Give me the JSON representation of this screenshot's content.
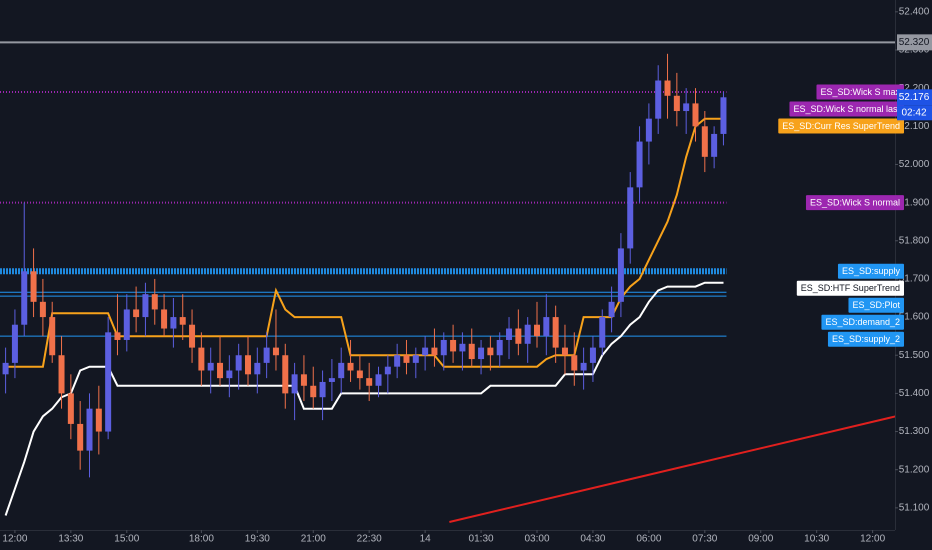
{
  "chart_data": {
    "type": "candlestick",
    "up_color": "#5c5fe0",
    "down_color": "#f0714a",
    "x": [
      0,
      1,
      2,
      3,
      4,
      5,
      6,
      7,
      8,
      9,
      10,
      11,
      12,
      13,
      14,
      15,
      16,
      17,
      18,
      19,
      20,
      21,
      22,
      23,
      24,
      25,
      26,
      27,
      28,
      29,
      30,
      31,
      32,
      33,
      34,
      35,
      36,
      37,
      38,
      39,
      40,
      41,
      42,
      43,
      44,
      45,
      46,
      47,
      48,
      49,
      50,
      51,
      52,
      53,
      54,
      55,
      56,
      57,
      58,
      59,
      60,
      61,
      62,
      63,
      64,
      65,
      66,
      67,
      68,
      69,
      70,
      71,
      72,
      73,
      74,
      75,
      76,
      77
    ],
    "open": [
      51.45,
      51.48,
      51.58,
      51.72,
      51.64,
      51.6,
      51.5,
      51.4,
      51.32,
      51.25,
      51.36,
      51.3,
      51.56,
      51.54,
      51.62,
      51.6,
      51.66,
      51.62,
      51.57,
      51.6,
      51.58,
      51.52,
      51.46,
      51.48,
      51.44,
      51.46,
      51.5,
      51.45,
      51.48,
      51.52,
      51.5,
      51.4,
      51.45,
      51.42,
      51.39,
      51.43,
      51.44,
      51.48,
      51.46,
      51.44,
      51.42,
      51.45,
      51.47,
      51.5,
      51.48,
      51.5,
      51.52,
      51.5,
      51.54,
      51.51,
      51.53,
      51.49,
      51.52,
      51.5,
      51.54,
      51.57,
      51.53,
      51.58,
      51.55,
      51.6,
      51.52,
      51.5,
      51.46,
      51.48,
      51.52,
      51.6,
      51.64,
      51.78,
      51.94,
      52.06,
      52.12,
      52.22,
      52.18,
      52.14,
      52.16,
      52.1,
      52.02,
      52.08
    ],
    "high": [
      51.52,
      51.62,
      51.9,
      51.78,
      51.7,
      51.64,
      51.55,
      51.45,
      51.38,
      51.4,
      51.42,
      51.6,
      51.66,
      51.66,
      51.68,
      51.69,
      51.7,
      51.66,
      51.65,
      51.66,
      51.62,
      51.56,
      51.52,
      51.55,
      51.5,
      51.53,
      51.55,
      51.52,
      51.56,
      51.62,
      51.53,
      51.48,
      51.5,
      51.47,
      51.46,
      51.49,
      51.52,
      51.54,
      51.5,
      51.48,
      51.47,
      51.5,
      51.53,
      51.54,
      51.52,
      51.55,
      51.57,
      51.56,
      51.58,
      51.56,
      51.57,
      51.54,
      51.55,
      51.56,
      51.6,
      51.62,
      51.6,
      51.64,
      51.66,
      51.63,
      51.58,
      51.56,
      51.52,
      51.55,
      51.62,
      51.68,
      51.82,
      51.98,
      52.1,
      52.16,
      52.26,
      52.29,
      52.24,
      52.2,
      52.2,
      52.14,
      52.1,
      52.19
    ],
    "low": [
      51.4,
      51.44,
      51.55,
      51.6,
      51.55,
      51.48,
      51.36,
      51.28,
      51.2,
      51.18,
      51.24,
      51.28,
      51.5,
      51.51,
      51.56,
      51.55,
      51.58,
      51.55,
      51.52,
      51.54,
      51.48,
      51.42,
      51.4,
      51.42,
      51.39,
      51.41,
      51.42,
      51.4,
      51.44,
      51.46,
      51.36,
      51.33,
      51.38,
      51.36,
      51.33,
      51.38,
      51.4,
      51.43,
      51.41,
      51.38,
      51.39,
      51.4,
      51.44,
      51.45,
      51.44,
      51.46,
      51.47,
      51.46,
      51.48,
      51.46,
      51.47,
      51.45,
      51.46,
      51.47,
      51.49,
      51.5,
      51.48,
      51.52,
      51.5,
      51.48,
      51.45,
      51.42,
      51.41,
      51.43,
      51.5,
      51.56,
      51.6,
      51.74,
      51.9,
      52.0,
      52.08,
      52.12,
      52.1,
      52.08,
      52.06,
      51.98,
      51.99,
      52.05
    ],
    "close": [
      51.48,
      51.58,
      51.72,
      51.64,
      51.6,
      51.5,
      51.4,
      51.32,
      51.25,
      51.36,
      51.3,
      51.56,
      51.54,
      51.62,
      51.6,
      51.66,
      51.62,
      51.57,
      51.6,
      51.58,
      51.52,
      51.46,
      51.48,
      51.44,
      51.46,
      51.5,
      51.45,
      51.48,
      51.52,
      51.5,
      51.4,
      51.45,
      51.42,
      51.39,
      51.43,
      51.44,
      51.48,
      51.46,
      51.44,
      51.42,
      51.45,
      51.47,
      51.5,
      51.48,
      51.5,
      51.52,
      51.5,
      51.54,
      51.51,
      51.53,
      51.49,
      51.52,
      51.5,
      51.54,
      51.57,
      51.53,
      51.58,
      51.55,
      51.6,
      51.52,
      51.5,
      51.46,
      51.48,
      51.52,
      51.6,
      51.64,
      51.78,
      51.94,
      52.06,
      52.12,
      52.22,
      52.18,
      52.14,
      52.16,
      52.1,
      52.02,
      52.08,
      52.176
    ],
    "lines": [
      {
        "name": "ES_SD:Curr Res SuperTrend",
        "color": "#f7a21b",
        "text_color": "#ffffff",
        "values": [
          51.47,
          51.47,
          51.47,
          51.47,
          51.47,
          51.61,
          51.61,
          51.61,
          51.61,
          51.61,
          51.61,
          51.61,
          51.55,
          51.55,
          51.55,
          51.55,
          51.55,
          51.55,
          51.55,
          51.55,
          51.55,
          51.55,
          51.55,
          51.55,
          51.55,
          51.55,
          51.55,
          51.55,
          51.55,
          51.67,
          51.62,
          51.6,
          51.6,
          51.6,
          51.6,
          51.6,
          51.6,
          51.5,
          51.5,
          51.5,
          51.5,
          51.5,
          51.5,
          51.5,
          51.5,
          51.5,
          51.5,
          51.47,
          51.47,
          51.47,
          51.47,
          51.47,
          51.47,
          51.47,
          51.47,
          51.47,
          51.47,
          51.47,
          51.49,
          51.5,
          51.5,
          51.5,
          51.6,
          51.6,
          51.6,
          51.6,
          51.65,
          51.68,
          51.7,
          51.75,
          51.8,
          51.85,
          51.92,
          52.02,
          52.1,
          52.12,
          52.12,
          52.12
        ]
      },
      {
        "name": "ES_SD:HTF SuperTrend",
        "color": "#ffffff",
        "text_color": "#131722",
        "values": [
          51.08,
          51.15,
          51.22,
          51.3,
          51.34,
          51.36,
          51.39,
          51.4,
          51.46,
          51.47,
          51.47,
          51.47,
          51.42,
          51.42,
          51.42,
          51.42,
          51.42,
          51.42,
          51.42,
          51.42,
          51.42,
          51.42,
          51.42,
          51.42,
          51.42,
          51.42,
          51.42,
          51.42,
          51.42,
          51.42,
          51.42,
          51.42,
          51.36,
          51.36,
          51.36,
          51.36,
          51.4,
          51.4,
          51.4,
          51.4,
          51.4,
          51.4,
          51.4,
          51.4,
          51.4,
          51.4,
          51.4,
          51.4,
          51.4,
          51.4,
          51.4,
          51.4,
          51.42,
          51.42,
          51.42,
          51.42,
          51.42,
          51.42,
          51.42,
          51.42,
          51.45,
          51.45,
          51.45,
          51.45,
          51.5,
          51.53,
          51.55,
          51.58,
          51.6,
          51.64,
          51.67,
          51.68,
          51.68,
          51.68,
          51.68,
          51.69,
          51.69,
          51.69
        ]
      }
    ],
    "levels": [
      {
        "name": "ES_SD:Wick S max",
        "value": 52.19,
        "color": "#9c27b0",
        "style": "dotted"
      },
      {
        "name": "ES_SD:Wick S normal last",
        "value": 52.15,
        "color": "#9c27b0",
        "style": "none"
      },
      {
        "name": "ES_SD:Wick S normal",
        "value": 51.9,
        "color": "#9c27b0",
        "style": "dotted"
      },
      {
        "name": "ES_SD:supply",
        "value": 51.72,
        "color": "#2196f3",
        "style": "thick"
      },
      {
        "name": "ES_SD:Plot",
        "value": 51.665,
        "color": "#2196f3",
        "style": "solid"
      },
      {
        "name": "ES_SD:demand_2",
        "value": 51.655,
        "color": "#2196f3",
        "style": "solid"
      },
      {
        "name": "ES_SD:supply_2",
        "value": 51.55,
        "color": "#2196f3",
        "style": "solid"
      }
    ],
    "price_line": {
      "value": 52.32,
      "value_label": "52.320",
      "color": "#9598a1"
    },
    "last_price": {
      "value": 52.176,
      "value_label": "52.176",
      "countdown": "02:42",
      "color": "#1e53e5"
    },
    "trend_line": {
      "color": "#e0201e",
      "x": [
        47.6,
        99.3
      ],
      "values": [
        51.063,
        51.362
      ]
    },
    "xlim": [
      -0.6,
      95.4
    ],
    "ylim": [
      51.042,
      52.431
    ],
    "grid": false,
    "xticks": [
      {
        "value": 1,
        "label": "12:00"
      },
      {
        "value": 7,
        "label": "13:30"
      },
      {
        "value": 13,
        "label": "15:00"
      },
      {
        "value": 21,
        "label": "18:00"
      },
      {
        "value": 27,
        "label": "19:30"
      },
      {
        "value": 33,
        "label": "21:00"
      },
      {
        "value": 39,
        "label": "22:30"
      },
      {
        "value": 45,
        "label": "14"
      },
      {
        "value": 51,
        "label": "01:30"
      },
      {
        "value": 57,
        "label": "03:00"
      },
      {
        "value": 63,
        "label": "04:30"
      },
      {
        "value": 69,
        "label": "06:00"
      },
      {
        "value": 75,
        "label": "07:30"
      },
      {
        "value": 81,
        "label": "09:00"
      },
      {
        "value": 87,
        "label": "10:30"
      },
      {
        "value": 93,
        "label": "12:00"
      }
    ],
    "yticks": [
      {
        "value": 51.1,
        "label": "51.100"
      },
      {
        "value": 51.2,
        "label": "51.200"
      },
      {
        "value": 51.3,
        "label": "51.300"
      },
      {
        "value": 51.4,
        "label": "51.400"
      },
      {
        "value": 51.5,
        "label": "51.500"
      },
      {
        "value": 51.6,
        "label": "51.600"
      },
      {
        "value": 51.7,
        "label": "51.700"
      },
      {
        "value": 51.8,
        "label": "51.800"
      },
      {
        "value": 51.9,
        "label": "51.900"
      },
      {
        "value": 52.0,
        "label": "52.000"
      },
      {
        "value": 52.1,
        "label": "52.100"
      },
      {
        "value": 52.2,
        "label": "52.200"
      },
      {
        "value": 52.3,
        "label": "52.300"
      },
      {
        "value": 52.4,
        "label": "52.400"
      }
    ]
  }
}
